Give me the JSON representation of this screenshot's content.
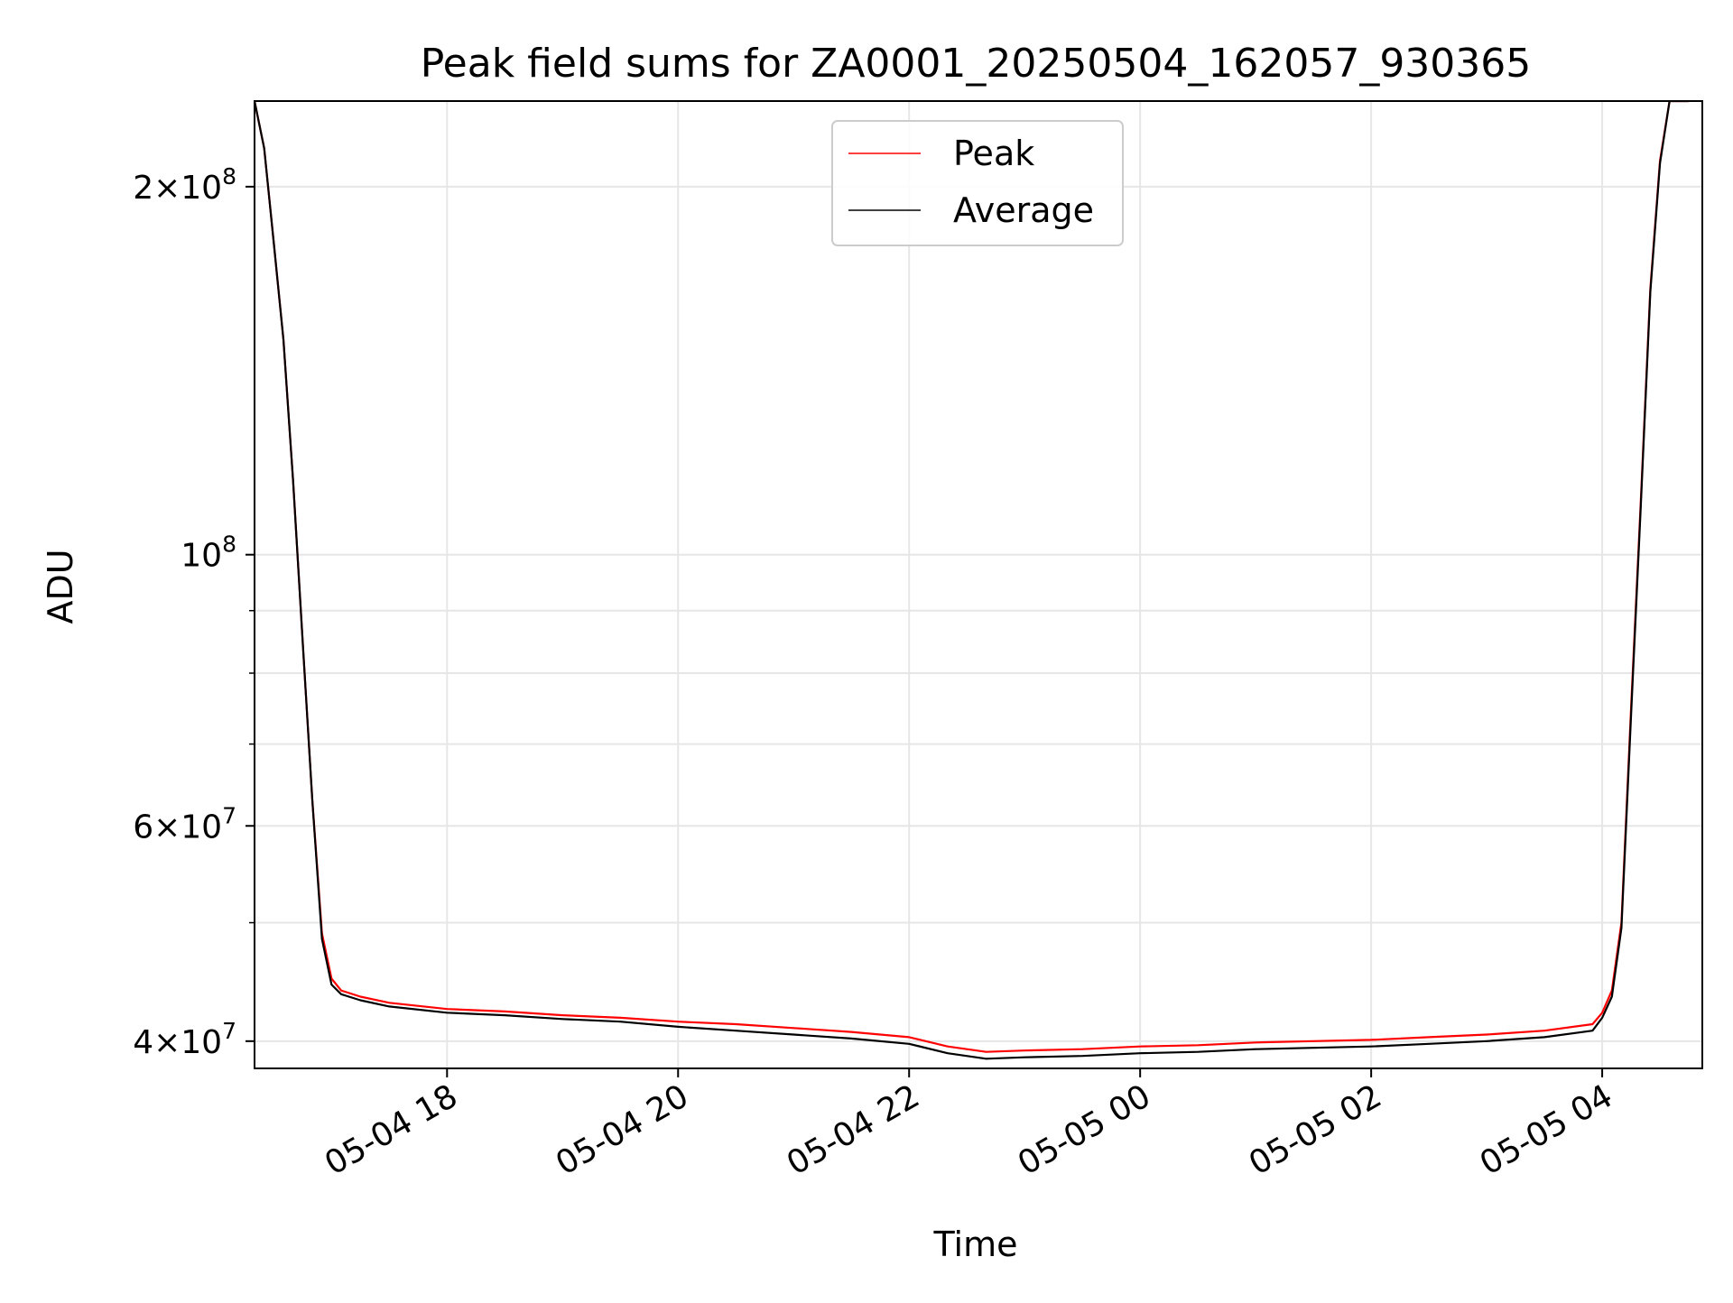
{
  "chart_data": {
    "type": "line",
    "title": "Peak field sums for ZA0001_20250504_162057_930365",
    "xlabel": "Time",
    "ylabel": "ADU",
    "yscale": "log",
    "xlim": [
      "2025-05-04 16:20",
      "2025-05-05 04:52"
    ],
    "ylim": [
      38000000,
      235000000
    ],
    "grid": true,
    "legend": {
      "position": "top-center",
      "entries": [
        "Peak",
        "Average"
      ]
    },
    "x_ticks": [
      {
        "value": "2025-05-04 18:00",
        "label": "05-04 18"
      },
      {
        "value": "2025-05-04 20:00",
        "label": "05-04 20"
      },
      {
        "value": "2025-05-04 22:00",
        "label": "05-04 22"
      },
      {
        "value": "2025-05-05 00:00",
        "label": "05-05 00"
      },
      {
        "value": "2025-05-05 02:00",
        "label": "05-05 02"
      },
      {
        "value": "2025-05-05 04:00",
        "label": "05-05 04"
      }
    ],
    "y_ticks": [
      {
        "value": 40000000,
        "mantissa": "4",
        "exponent": "7"
      },
      {
        "value": 60000000,
        "mantissa": "6",
        "exponent": "7"
      },
      {
        "value": 100000000,
        "mantissa": "",
        "exponent": "8"
      },
      {
        "value": 200000000,
        "mantissa": "2",
        "exponent": "8"
      }
    ],
    "y_minor_ticks": [
      50000000,
      70000000,
      80000000,
      90000000
    ],
    "series": [
      {
        "name": "Peak",
        "color": "#ff0000",
        "x": [
          "2025-05-04 16:20",
          "2025-05-04 16:25",
          "2025-05-04 16:30",
          "2025-05-04 16:35",
          "2025-05-04 16:40",
          "2025-05-04 16:45",
          "2025-05-04 16:50",
          "2025-05-04 16:55",
          "2025-05-04 17:00",
          "2025-05-04 17:05",
          "2025-05-04 17:15",
          "2025-05-04 17:30",
          "2025-05-04 18:00",
          "2025-05-04 18:30",
          "2025-05-04 19:00",
          "2025-05-04 19:30",
          "2025-05-04 20:00",
          "2025-05-04 20:30",
          "2025-05-04 21:00",
          "2025-05-04 21:30",
          "2025-05-04 22:00",
          "2025-05-04 22:20",
          "2025-05-04 22:40",
          "2025-05-04 23:00",
          "2025-05-04 23:30",
          "2025-05-05 00:00",
          "2025-05-05 00:30",
          "2025-05-05 01:00",
          "2025-05-05 01:30",
          "2025-05-05 02:00",
          "2025-05-05 02:30",
          "2025-05-05 03:00",
          "2025-05-05 03:30",
          "2025-05-05 03:55",
          "2025-05-05 04:00",
          "2025-05-05 04:05",
          "2025-05-05 04:10",
          "2025-05-05 04:15",
          "2025-05-05 04:20",
          "2025-05-05 04:25",
          "2025-05-05 04:30",
          "2025-05-05 04:35",
          "2025-05-05 04:40",
          "2025-05-05 04:45"
        ],
        "values": [
          235000000,
          215000000,
          180000000,
          150000000,
          115000000,
          85000000,
          63000000,
          49000000,
          45000000,
          44000000,
          43500000,
          43000000,
          42500000,
          42300000,
          42000000,
          41800000,
          41500000,
          41300000,
          41000000,
          40700000,
          40300000,
          39600000,
          39200000,
          39300000,
          39400000,
          39600000,
          39700000,
          39900000,
          40000000,
          40100000,
          40300000,
          40500000,
          40800000,
          41300000,
          42200000,
          44000000,
          50000000,
          75000000,
          110000000,
          165000000,
          210000000,
          235000000,
          235000000,
          235000000
        ]
      },
      {
        "name": "Average",
        "color": "#000000",
        "x": [
          "2025-05-04 16:20",
          "2025-05-04 16:25",
          "2025-05-04 16:30",
          "2025-05-04 16:35",
          "2025-05-04 16:40",
          "2025-05-04 16:45",
          "2025-05-04 16:50",
          "2025-05-04 16:55",
          "2025-05-04 17:00",
          "2025-05-04 17:05",
          "2025-05-04 17:15",
          "2025-05-04 17:30",
          "2025-05-04 18:00",
          "2025-05-04 18:30",
          "2025-05-04 19:00",
          "2025-05-04 19:30",
          "2025-05-04 20:00",
          "2025-05-04 20:30",
          "2025-05-04 21:00",
          "2025-05-04 21:30",
          "2025-05-04 22:00",
          "2025-05-04 22:20",
          "2025-05-04 22:40",
          "2025-05-04 23:00",
          "2025-05-04 23:30",
          "2025-05-05 00:00",
          "2025-05-05 00:30",
          "2025-05-05 01:00",
          "2025-05-05 01:30",
          "2025-05-05 02:00",
          "2025-05-05 02:30",
          "2025-05-05 03:00",
          "2025-05-05 03:30",
          "2025-05-05 03:55",
          "2025-05-05 04:00",
          "2025-05-05 04:05",
          "2025-05-05 04:10",
          "2025-05-05 04:15",
          "2025-05-05 04:20",
          "2025-05-05 04:25",
          "2025-05-05 04:30",
          "2025-05-05 04:35",
          "2025-05-05 04:40",
          "2025-05-05 04:45"
        ],
        "values": [
          235000000,
          215000000,
          180000000,
          150000000,
          115000000,
          85000000,
          63000000,
          48500000,
          44500000,
          43700000,
          43200000,
          42700000,
          42200000,
          42000000,
          41700000,
          41500000,
          41100000,
          40800000,
          40500000,
          40200000,
          39800000,
          39100000,
          38700000,
          38800000,
          38900000,
          39100000,
          39200000,
          39400000,
          39500000,
          39600000,
          39800000,
          40000000,
          40300000,
          40800000,
          41800000,
          43500000,
          49500000,
          74000000,
          109000000,
          164000000,
          209000000,
          235000000,
          235000000,
          235000000
        ]
      }
    ]
  }
}
